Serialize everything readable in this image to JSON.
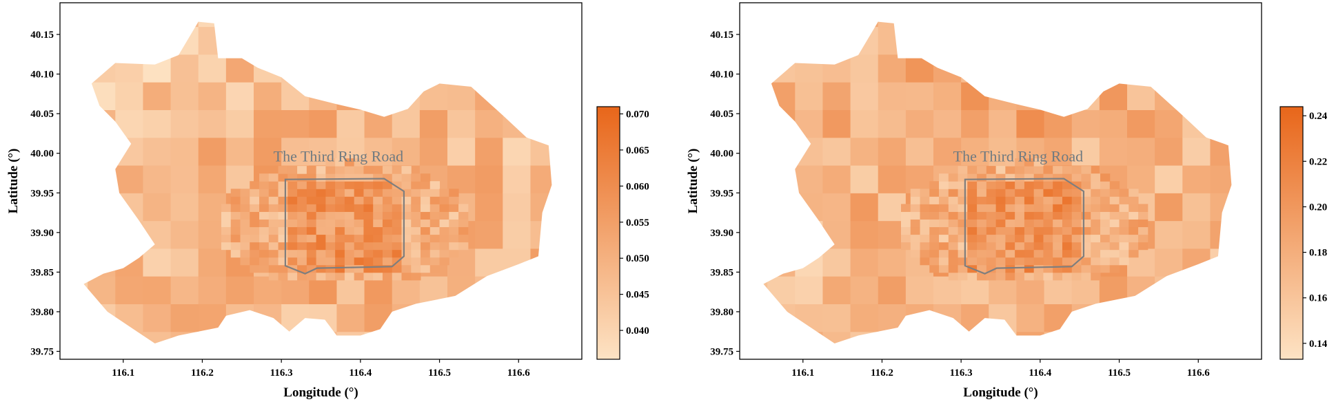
{
  "chart_data": [
    {
      "type": "heatmap",
      "subtype": "choropleth",
      "xlabel": "Longitude (°)",
      "ylabel": "Latitude (°)",
      "xlim": [
        116.02,
        116.68
      ],
      "ylim": [
        39.74,
        40.19
      ],
      "xticks": [
        116.1,
        116.2,
        116.3,
        116.4,
        116.5,
        116.6
      ],
      "xtick_labels": [
        "116.1",
        "116.2",
        "116.3",
        "116.4",
        "116.5",
        "116.6"
      ],
      "yticks": [
        39.75,
        39.8,
        39.85,
        39.9,
        39.95,
        40.0,
        40.05,
        40.1,
        40.15
      ],
      "ytick_labels": [
        "39.75",
        "39.80",
        "39.85",
        "39.90",
        "39.95",
        "40.00",
        "40.05",
        "40.10",
        "40.15"
      ],
      "annotation": "The Third Ring Road",
      "ring_road": [
        [
          116.305,
          39.967
        ],
        [
          116.43,
          39.968
        ],
        [
          116.455,
          39.952
        ],
        [
          116.455,
          39.87
        ],
        [
          116.44,
          39.857
        ],
        [
          116.345,
          39.855
        ],
        [
          116.33,
          39.848
        ],
        [
          116.305,
          39.858
        ]
      ],
      "colorbar": {
        "min": 0.036,
        "max": 0.071,
        "ticks": [
          0.04,
          0.045,
          0.05,
          0.055,
          0.06,
          0.065,
          0.07
        ],
        "tick_labels": [
          "0.040",
          "0.045",
          "0.050",
          "0.055",
          "0.060",
          "0.065",
          "0.070"
        ],
        "cmap": [
          "#fde3c4",
          "#e8661a"
        ]
      }
    },
    {
      "type": "heatmap",
      "subtype": "choropleth",
      "xlabel": "Longitude (°)",
      "ylabel": "Latitude (°)",
      "xlim": [
        116.02,
        116.68
      ],
      "ylim": [
        39.74,
        40.19
      ],
      "xticks": [
        116.1,
        116.2,
        116.3,
        116.4,
        116.5,
        116.6
      ],
      "xtick_labels": [
        "116.1",
        "116.2",
        "116.3",
        "116.4",
        "116.5",
        "116.6"
      ],
      "yticks": [
        39.75,
        39.8,
        39.85,
        39.9,
        39.95,
        40.0,
        40.05,
        40.1,
        40.15
      ],
      "ytick_labels": [
        "39.75",
        "39.80",
        "39.85",
        "39.90",
        "39.95",
        "40.00",
        "40.05",
        "40.10",
        "40.15"
      ],
      "annotation": "The Third Ring Road",
      "ring_road": [
        [
          116.305,
          39.967
        ],
        [
          116.43,
          39.968
        ],
        [
          116.455,
          39.952
        ],
        [
          116.455,
          39.87
        ],
        [
          116.44,
          39.857
        ],
        [
          116.345,
          39.855
        ],
        [
          116.33,
          39.848
        ],
        [
          116.305,
          39.858
        ]
      ],
      "colorbar": {
        "min": 0.133,
        "max": 0.244,
        "ticks": [
          0.14,
          0.16,
          0.18,
          0.2,
          0.22,
          0.24
        ],
        "tick_labels": [
          "0.14",
          "0.16",
          "0.18",
          "0.20",
          "0.22",
          "0.24"
        ],
        "cmap": [
          "#fde3c4",
          "#e8661a"
        ]
      }
    }
  ]
}
